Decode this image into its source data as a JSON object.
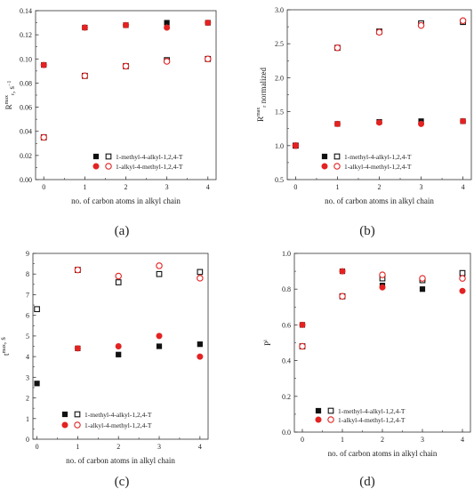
{
  "figure": {
    "panel_labels": [
      "(a)",
      "(b)",
      "(c)",
      "(d)"
    ]
  },
  "colors": {
    "series_black": "#111111",
    "series_red": "#e32222",
    "axis": "#333333"
  },
  "chart_data": [
    {
      "type": "scatter",
      "panel": "(a)",
      "xlabel": "no. of carbon atoms in alkyl chain",
      "ylabel": "R",
      "ylabel_sup": "max",
      "ylabel_sub": "r",
      "ylabel_unit": ", s",
      "ylabel_unit_sup": "−1",
      "xlim": [
        -0.2,
        4.2
      ],
      "ylim": [
        0,
        0.14
      ],
      "xticks": [
        0,
        1,
        2,
        3,
        4
      ],
      "yticks": [
        0.0,
        0.02,
        0.04,
        0.06,
        0.08,
        0.1,
        0.12,
        0.14
      ],
      "ytick_labels": [
        "0.00",
        "0.02",
        "0.04",
        "0.06",
        "0.08",
        "0.10",
        "0.12",
        "0.14"
      ],
      "legend_position": "lower-right",
      "legend": [
        {
          "text": "1-methyl-4-alkyl-1,2,4-T",
          "color": "#111111",
          "markers": [
            "filled-square",
            "open-square"
          ]
        },
        {
          "text": "1-alkyl-4-methyl-1,2,4-T",
          "color": "#e32222",
          "markers": [
            "filled-circle",
            "open-circle"
          ]
        }
      ],
      "series": [
        {
          "marker": "filled-square",
          "color": "#111111",
          "x": [
            0,
            1,
            2,
            3,
            4
          ],
          "y": [
            0.095,
            0.126,
            0.128,
            0.13,
            0.13
          ]
        },
        {
          "marker": "filled-circle",
          "color": "#e32222",
          "x": [
            0,
            1,
            2,
            3,
            4
          ],
          "y": [
            0.095,
            0.126,
            0.128,
            0.126,
            0.13
          ]
        },
        {
          "marker": "open-square",
          "color": "#111111",
          "x": [
            0,
            1,
            2,
            3,
            4
          ],
          "y": [
            0.035,
            0.086,
            0.094,
            0.099,
            0.1
          ]
        },
        {
          "marker": "open-circle",
          "color": "#e32222",
          "x": [
            0,
            1,
            2,
            3,
            4
          ],
          "y": [
            0.035,
            0.086,
            0.094,
            0.098,
            0.1
          ]
        }
      ]
    },
    {
      "type": "scatter",
      "panel": "(b)",
      "xlabel": "no. of carbon atoms in alkyl chain",
      "ylabel": "R",
      "ylabel_sup": "max",
      "ylabel_sub": "r",
      "ylabel_unit": " normalized",
      "ylabel_unit_sup": "",
      "xlim": [
        -0.2,
        4.2
      ],
      "ylim": [
        0.5,
        3.0
      ],
      "xticks": [
        0,
        1,
        2,
        3,
        4
      ],
      "yticks": [
        0.5,
        1.0,
        1.5,
        2.0,
        2.5,
        3.0
      ],
      "ytick_labels": [
        "0.5",
        "1.0",
        "1.5",
        "2.0",
        "2.5",
        "3.0"
      ],
      "legend_position": "lower-right",
      "legend": [
        {
          "text": "1-methyl-4-alkyl-1,2,4-T",
          "color": "#111111",
          "markers": [
            "filled-square",
            "open-square"
          ]
        },
        {
          "text": "1-alkyl-4-methyl-1,2,4-T",
          "color": "#e32222",
          "markers": [
            "filled-circle",
            "open-circle"
          ]
        }
      ],
      "series": [
        {
          "marker": "open-square",
          "color": "#111111",
          "x": [
            0,
            1,
            2,
            3,
            4
          ],
          "y": [
            1.0,
            2.44,
            2.68,
            2.8,
            2.82
          ]
        },
        {
          "marker": "open-circle",
          "color": "#e32222",
          "x": [
            0,
            1,
            2,
            3,
            4
          ],
          "y": [
            1.0,
            2.44,
            2.67,
            2.77,
            2.84
          ]
        },
        {
          "marker": "filled-square",
          "color": "#111111",
          "x": [
            0,
            1,
            2,
            3,
            4
          ],
          "y": [
            1.0,
            1.32,
            1.35,
            1.36,
            1.36
          ]
        },
        {
          "marker": "filled-circle",
          "color": "#e32222",
          "x": [
            0,
            1,
            2,
            3,
            4
          ],
          "y": [
            1.0,
            1.32,
            1.34,
            1.32,
            1.36
          ]
        }
      ]
    },
    {
      "type": "scatter",
      "panel": "(c)",
      "xlabel": "no. of carbon atoms in alkyl chain",
      "ylabel": "t",
      "ylabel_sup": "max",
      "ylabel_sub": "",
      "ylabel_unit": ", s",
      "ylabel_unit_sup": "",
      "xlim": [
        -0.1,
        4.2
      ],
      "ylim": [
        0,
        9
      ],
      "xticks": [
        0,
        1,
        2,
        3,
        4
      ],
      "yticks": [
        0,
        1,
        2,
        3,
        4,
        5,
        6,
        7,
        8,
        9
      ],
      "ytick_labels": [
        "0",
        "1",
        "2",
        "3",
        "4",
        "5",
        "6",
        "7",
        "8",
        "9"
      ],
      "legend_position": "bottom-center",
      "legend": [
        {
          "text": "1-methyl-4-alkyl-1,2,4-T",
          "color": "#111111",
          "markers": [
            "filled-square",
            "open-square"
          ]
        },
        {
          "text": "1-alkyl-4-methyl-1,2,4-T",
          "color": "#e32222",
          "markers": [
            "filled-circle",
            "open-circle"
          ]
        }
      ],
      "series": [
        {
          "marker": "open-square",
          "color": "#111111",
          "x": [
            0,
            1,
            2,
            3,
            4
          ],
          "y": [
            6.3,
            8.2,
            7.6,
            8.0,
            8.1
          ]
        },
        {
          "marker": "open-circle",
          "color": "#e32222",
          "x": [
            1,
            2,
            3,
            4
          ],
          "y": [
            8.2,
            7.9,
            8.4,
            7.8
          ]
        },
        {
          "marker": "filled-square",
          "color": "#111111",
          "x": [
            0,
            1,
            2,
            3,
            4
          ],
          "y": [
            2.7,
            4.4,
            4.1,
            4.5,
            4.6
          ]
        },
        {
          "marker": "filled-circle",
          "color": "#e32222",
          "x": [
            1,
            2,
            3,
            4
          ],
          "y": [
            4.4,
            4.5,
            5.0,
            4.0
          ]
        }
      ]
    },
    {
      "type": "scatter",
      "panel": "(d)",
      "xlabel": "no. of carbon atoms in alkyl chain",
      "ylabel": "P",
      "ylabel_sup": "i",
      "ylabel_sub": "",
      "ylabel_unit": "",
      "ylabel_unit_sup": "",
      "xlim": [
        -0.2,
        4.2
      ],
      "ylim": [
        0,
        1.0
      ],
      "xticks": [
        0,
        1,
        2,
        3,
        4
      ],
      "yticks": [
        0.0,
        0.2,
        0.4,
        0.6,
        0.8,
        1.0
      ],
      "ytick_labels": [
        "0.0",
        "0.2",
        "0.4",
        "0.6",
        "0.8",
        "1.0"
      ],
      "legend_position": "lower-right",
      "legend": [
        {
          "text": "1-methyl-4-alkyl-1,2,4-T",
          "color": "#111111",
          "markers": [
            "filled-square",
            "open-square"
          ]
        },
        {
          "text": "1-alkyl-4-methyl-1,2,4-T",
          "color": "#e32222",
          "markers": [
            "filled-circle",
            "open-circle"
          ]
        }
      ],
      "series": [
        {
          "marker": "filled-square",
          "color": "#111111",
          "x": [
            0,
            1,
            2,
            3,
            4
          ],
          "y": [
            0.6,
            0.9,
            0.82,
            0.8,
            0.87
          ]
        },
        {
          "marker": "filled-circle",
          "color": "#e32222",
          "x": [
            0,
            1,
            2,
            3,
            4
          ],
          "y": [
            0.6,
            0.9,
            0.81,
            0.85,
            0.79
          ]
        },
        {
          "marker": "open-square",
          "color": "#111111",
          "x": [
            0,
            1,
            2,
            3,
            4
          ],
          "y": [
            0.48,
            0.76,
            0.86,
            0.85,
            0.89
          ]
        },
        {
          "marker": "open-circle",
          "color": "#e32222",
          "x": [
            0,
            1,
            2,
            3,
            4
          ],
          "y": [
            0.48,
            0.76,
            0.88,
            0.86,
            0.86
          ]
        }
      ]
    }
  ]
}
